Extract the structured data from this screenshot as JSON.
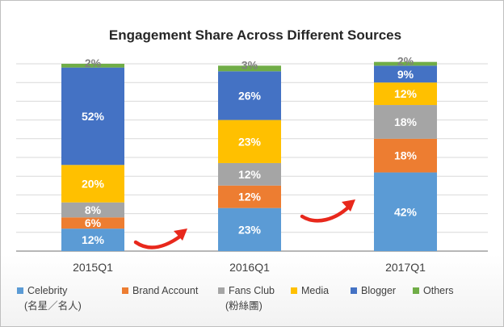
{
  "chart_data": {
    "type": "bar",
    "stacked": true,
    "title": "Engagement Share Across Different Sources",
    "categories": [
      "2015Q1",
      "2016Q1",
      "2017Q1"
    ],
    "series": [
      {
        "name": "Celebrity",
        "name_line2": "(名星／名人)",
        "color": "#5b9bd5",
        "values": [
          12,
          23,
          42
        ]
      },
      {
        "name": "Brand Account",
        "name_line2": "",
        "color": "#ed7d31",
        "values": [
          6,
          12,
          18
        ]
      },
      {
        "name": "Fans Club",
        "name_line2": "(粉絲團)",
        "color": "#a5a5a5",
        "values": [
          8,
          12,
          18
        ]
      },
      {
        "name": "Media",
        "name_line2": "",
        "color": "#ffc000",
        "values": [
          20,
          23,
          12
        ]
      },
      {
        "name": "Blogger",
        "name_line2": "",
        "color": "#4472c4",
        "values": [
          52,
          26,
          9
        ]
      },
      {
        "name": "Others",
        "name_line2": "",
        "color": "#70ad47",
        "values": [
          2,
          3,
          2
        ]
      }
    ],
    "value_suffix": "%",
    "ylim": [
      0,
      100
    ],
    "grid": true,
    "legend_position": "bottom",
    "annotations": [
      "red-curved-arrow",
      "red-curved-arrow"
    ]
  }
}
